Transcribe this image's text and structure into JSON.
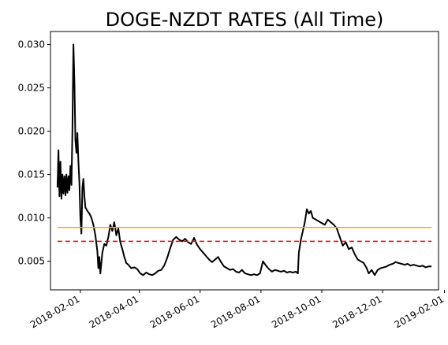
{
  "chart_data": {
    "type": "line",
    "title": "DOGE-NZDT RATES (All Time)",
    "xlabel": "",
    "ylabel": "",
    "x_range": [
      "2018-01-02",
      "2019-01-26"
    ],
    "ylim": [
      0.0017,
      0.0315
    ],
    "grid": false,
    "legend": "none",
    "x_ticks": [
      "2018-02-01",
      "2018-04-01",
      "2018-06-01",
      "2018-08-01",
      "2018-10-01",
      "2018-12-01",
      "2019-02-01"
    ],
    "y_ticks": [
      "0.005",
      "0.010",
      "0.015",
      "0.020",
      "0.025",
      "0.030"
    ],
    "series": [
      {
        "color": "#000000",
        "style": "solid",
        "points": [
          [
            "2018-01-09",
            0.0135
          ],
          [
            "2018-01-10",
            0.0178
          ],
          [
            "2018-01-11",
            0.0125
          ],
          [
            "2018-01-12",
            0.0165
          ],
          [
            "2018-01-13",
            0.0122
          ],
          [
            "2018-01-14",
            0.015
          ],
          [
            "2018-01-15",
            0.0128
          ],
          [
            "2018-01-16",
            0.0148
          ],
          [
            "2018-01-17",
            0.0126
          ],
          [
            "2018-01-18",
            0.015
          ],
          [
            "2018-01-19",
            0.0129
          ],
          [
            "2018-01-20",
            0.0148
          ],
          [
            "2018-01-21",
            0.0132
          ],
          [
            "2018-01-22",
            0.016
          ],
          [
            "2018-01-23",
            0.0138
          ],
          [
            "2018-01-24",
            0.02
          ],
          [
            "2018-01-25",
            0.03
          ],
          [
            "2018-01-26",
            0.0255
          ],
          [
            "2018-01-27",
            0.019
          ],
          [
            "2018-01-28",
            0.0175
          ],
          [
            "2018-01-29",
            0.0198
          ],
          [
            "2018-01-30",
            0.0165
          ],
          [
            "2018-01-31",
            0.014
          ],
          [
            "2018-02-01",
            0.01
          ],
          [
            "2018-02-02",
            0.0082
          ],
          [
            "2018-02-03",
            0.0135
          ],
          [
            "2018-02-04",
            0.0145
          ],
          [
            "2018-02-05",
            0.0125
          ],
          [
            "2018-02-06",
            0.0112
          ],
          [
            "2018-02-08",
            0.0108
          ],
          [
            "2018-02-10",
            0.0105
          ],
          [
            "2018-02-12",
            0.01
          ],
          [
            "2018-02-14",
            0.0092
          ],
          [
            "2018-02-16",
            0.008
          ],
          [
            "2018-02-18",
            0.0062
          ],
          [
            "2018-02-19",
            0.0042
          ],
          [
            "2018-02-20",
            0.0055
          ],
          [
            "2018-02-21",
            0.0036
          ],
          [
            "2018-02-23",
            0.006
          ],
          [
            "2018-02-25",
            0.007
          ],
          [
            "2018-02-27",
            0.0068
          ],
          [
            "2018-03-01",
            0.0078
          ],
          [
            "2018-03-03",
            0.0092
          ],
          [
            "2018-03-05",
            0.0085
          ],
          [
            "2018-03-07",
            0.0095
          ],
          [
            "2018-03-09",
            0.008
          ],
          [
            "2018-03-11",
            0.0088
          ],
          [
            "2018-03-13",
            0.0072
          ],
          [
            "2018-03-15",
            0.0064
          ],
          [
            "2018-03-17",
            0.0055
          ],
          [
            "2018-03-19",
            0.0048
          ],
          [
            "2018-03-21",
            0.0046
          ],
          [
            "2018-03-24",
            0.0042
          ],
          [
            "2018-03-27",
            0.0043
          ],
          [
            "2018-03-30",
            0.0041
          ],
          [
            "2018-04-02",
            0.0036
          ],
          [
            "2018-04-05",
            0.0034
          ],
          [
            "2018-04-08",
            0.0037
          ],
          [
            "2018-04-11",
            0.0035
          ],
          [
            "2018-04-14",
            0.0034
          ],
          [
            "2018-04-17",
            0.0036
          ],
          [
            "2018-04-20",
            0.0039
          ],
          [
            "2018-04-23",
            0.004
          ],
          [
            "2018-04-26",
            0.0045
          ],
          [
            "2018-04-29",
            0.0054
          ],
          [
            "2018-05-02",
            0.0065
          ],
          [
            "2018-05-05",
            0.0075
          ],
          [
            "2018-05-08",
            0.0078
          ],
          [
            "2018-05-11",
            0.0075
          ],
          [
            "2018-05-14",
            0.0073
          ],
          [
            "2018-05-17",
            0.0076
          ],
          [
            "2018-05-20",
            0.0072
          ],
          [
            "2018-05-23",
            0.007
          ],
          [
            "2018-05-26",
            0.0077
          ],
          [
            "2018-05-29",
            0.0069
          ],
          [
            "2018-06-01",
            0.0064
          ],
          [
            "2018-06-04",
            0.006
          ],
          [
            "2018-06-07",
            0.0056
          ],
          [
            "2018-06-10",
            0.0052
          ],
          [
            "2018-06-13",
            0.0049
          ],
          [
            "2018-06-16",
            0.0052
          ],
          [
            "2018-06-19",
            0.0055
          ],
          [
            "2018-06-22",
            0.0049
          ],
          [
            "2018-06-25",
            0.0044
          ],
          [
            "2018-06-28",
            0.0042
          ],
          [
            "2018-07-01",
            0.004
          ],
          [
            "2018-07-04",
            0.0041
          ],
          [
            "2018-07-07",
            0.0038
          ],
          [
            "2018-07-10",
            0.0037
          ],
          [
            "2018-07-13",
            0.004
          ],
          [
            "2018-07-16",
            0.0036
          ],
          [
            "2018-07-19",
            0.0035
          ],
          [
            "2018-07-22",
            0.0034
          ],
          [
            "2018-07-25",
            0.0035
          ],
          [
            "2018-07-28",
            0.0034
          ],
          [
            "2018-07-31",
            0.0036
          ],
          [
            "2018-08-03",
            0.005
          ],
          [
            "2018-08-06",
            0.0045
          ],
          [
            "2018-08-09",
            0.0041
          ],
          [
            "2018-08-12",
            0.0038
          ],
          [
            "2018-08-15",
            0.004
          ],
          [
            "2018-08-18",
            0.0039
          ],
          [
            "2018-08-21",
            0.0038
          ],
          [
            "2018-08-24",
            0.0039
          ],
          [
            "2018-08-27",
            0.0037
          ],
          [
            "2018-08-30",
            0.0038
          ],
          [
            "2018-09-02",
            0.0037
          ],
          [
            "2018-09-05",
            0.0038
          ],
          [
            "2018-09-07",
            0.0036
          ],
          [
            "2018-09-08",
            0.006
          ],
          [
            "2018-09-10",
            0.0075
          ],
          [
            "2018-09-12",
            0.0085
          ],
          [
            "2018-09-14",
            0.0095
          ],
          [
            "2018-09-16",
            0.011
          ],
          [
            "2018-09-18",
            0.0105
          ],
          [
            "2018-09-20",
            0.0108
          ],
          [
            "2018-09-22",
            0.01
          ],
          [
            "2018-09-25",
            0.0098
          ],
          [
            "2018-09-28",
            0.0096
          ],
          [
            "2018-10-01",
            0.0094
          ],
          [
            "2018-10-04",
            0.0092
          ],
          [
            "2018-10-07",
            0.0098
          ],
          [
            "2018-10-10",
            0.0095
          ],
          [
            "2018-10-13",
            0.0092
          ],
          [
            "2018-10-16",
            0.0088
          ],
          [
            "2018-10-19",
            0.0078
          ],
          [
            "2018-10-22",
            0.0068
          ],
          [
            "2018-10-25",
            0.0072
          ],
          [
            "2018-10-28",
            0.0064
          ],
          [
            "2018-10-31",
            0.0066
          ],
          [
            "2018-11-03",
            0.0058
          ],
          [
            "2018-11-06",
            0.0052
          ],
          [
            "2018-11-09",
            0.005
          ],
          [
            "2018-11-12",
            0.0048
          ],
          [
            "2018-11-15",
            0.0042
          ],
          [
            "2018-11-17",
            0.0036
          ],
          [
            "2018-11-20",
            0.004
          ],
          [
            "2018-11-23",
            0.0034
          ],
          [
            "2018-11-26",
            0.004
          ],
          [
            "2018-11-29",
            0.0042
          ],
          [
            "2018-12-02",
            0.0043
          ],
          [
            "2018-12-05",
            0.0044
          ],
          [
            "2018-12-08",
            0.0046
          ],
          [
            "2018-12-11",
            0.0047
          ],
          [
            "2018-12-14",
            0.0049
          ],
          [
            "2018-12-17",
            0.0048
          ],
          [
            "2018-12-20",
            0.0047
          ],
          [
            "2018-12-23",
            0.0046
          ],
          [
            "2018-12-26",
            0.0047
          ],
          [
            "2018-12-29",
            0.0045
          ],
          [
            "2019-01-01",
            0.0046
          ],
          [
            "2019-01-04",
            0.0045
          ],
          [
            "2019-01-07",
            0.0044
          ],
          [
            "2019-01-10",
            0.0045
          ],
          [
            "2019-01-13",
            0.0043
          ],
          [
            "2019-01-16",
            0.0044
          ],
          [
            "2019-01-19",
            0.0044
          ]
        ]
      },
      {
        "color": "#ffa500",
        "style": "solid",
        "points": [
          [
            "2018-01-09",
            0.0089
          ],
          [
            "2019-01-19",
            0.0089
          ]
        ]
      },
      {
        "color": "#ff0000",
        "style": "dashed",
        "points": [
          [
            "2018-01-09",
            0.0073
          ],
          [
            "2019-01-19",
            0.0073
          ]
        ]
      }
    ]
  }
}
